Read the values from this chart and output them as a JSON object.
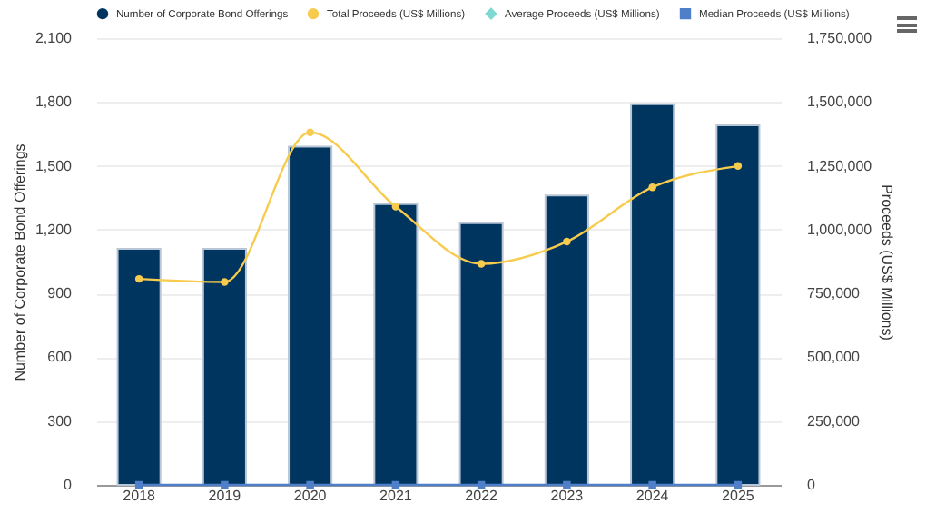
{
  "chart_data": {
    "type": "bar",
    "categories": [
      "2018",
      "2019",
      "2020",
      "2021",
      "2022",
      "2023",
      "2024",
      "2025"
    ],
    "ylabel": "Number of Corporate Bond Offerings",
    "y2label": "Proceeds (US$ Millions)",
    "ylim": [
      0,
      2100
    ],
    "yticks": [
      0,
      300,
      600,
      900,
      {
        "value": 1200,
        "label": "1,200"
      },
      {
        "value": 1500,
        "label": "1,500"
      },
      {
        "value": 1800,
        "label": "1,800"
      },
      {
        "value": 2100,
        "label": "2,100"
      }
    ],
    "y2lim": [
      0,
      1750000
    ],
    "y2ticks": [
      0,
      {
        "value": 250000,
        "label": "250,000"
      },
      {
        "value": 500000,
        "label": "500,000"
      },
      {
        "value": 750000,
        "label": "750,000"
      },
      {
        "value": 1000000,
        "label": "1,000,000"
      },
      {
        "value": 1250000,
        "label": "1,250,000"
      },
      {
        "value": 1500000,
        "label": "1,500,000"
      },
      {
        "value": 1750000,
        "label": "1,750,000"
      }
    ],
    "grid": "y",
    "legend": "top",
    "series": [
      {
        "name": "Number of Corporate Bond Offerings",
        "color": "#003560",
        "values": [
          1110,
          1110,
          1590,
          1320,
          1230,
          1360,
          1790,
          1690
        ]
      },
      {
        "name": "Total Proceeds (US$ Millions)",
        "type": "line",
        "axis": "y2",
        "marker": "circle",
        "color": "#f7cb4d",
        "values": [
          807000,
          795000,
          1381000,
          1090000,
          866000,
          953000,
          1166000,
          1249000
        ]
      },
      {
        "name": "Average Proceeds (US$ Millions)",
        "type": "line",
        "axis": "y2",
        "marker": "diamond",
        "color": "#7fd8d2",
        "values": [
          null,
          null,
          null,
          null,
          null,
          null,
          null,
          null
        ]
      },
      {
        "name": "Median Proceeds (US$ Millions)",
        "type": "line",
        "axis": "y2",
        "marker": "square",
        "color": "#4f7fc9",
        "values": [
          0,
          0,
          0,
          0,
          0,
          0,
          0,
          0
        ]
      }
    ]
  }
}
